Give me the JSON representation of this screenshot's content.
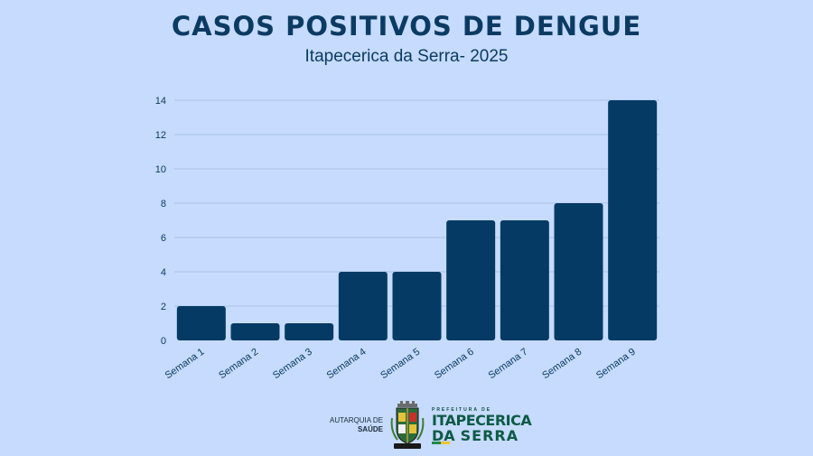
{
  "header": {
    "title": "CASOS POSITIVOS DE DENGUE",
    "subtitle": "Itapecerica da Serra- 2025"
  },
  "colors": {
    "background": "#c6dbfd",
    "bar": "#053a64",
    "text": "#0b3b63",
    "grid": "#a9c3e8"
  },
  "chart_data": {
    "type": "bar",
    "categories": [
      "Semana 1",
      "Semana 2",
      "Semana 3",
      "Semana 4",
      "Semana 5",
      "Semana 6",
      "Semana 7",
      "Semana 8",
      "Semana 9"
    ],
    "values": [
      2,
      1,
      1,
      4,
      4,
      7,
      7,
      8,
      14
    ],
    "title": "CASOS POSITIVOS DE DENGUE",
    "subtitle": "Itapecerica da Serra- 2025",
    "xlabel": "",
    "ylabel": "",
    "ylim": [
      0,
      14
    ],
    "yticks": [
      0,
      2,
      4,
      6,
      8,
      10,
      12,
      14
    ],
    "grid": true,
    "legend": "none"
  },
  "footer": {
    "autarquia_line1": "AUTARQUIA DE",
    "autarquia_line2": "SAÚDE",
    "prefeitura_small": "PREFEITURA DE",
    "prefeitura_line1": "ITAPECERICA",
    "prefeitura_da": "DA",
    "prefeitura_serra": "SERRA"
  }
}
